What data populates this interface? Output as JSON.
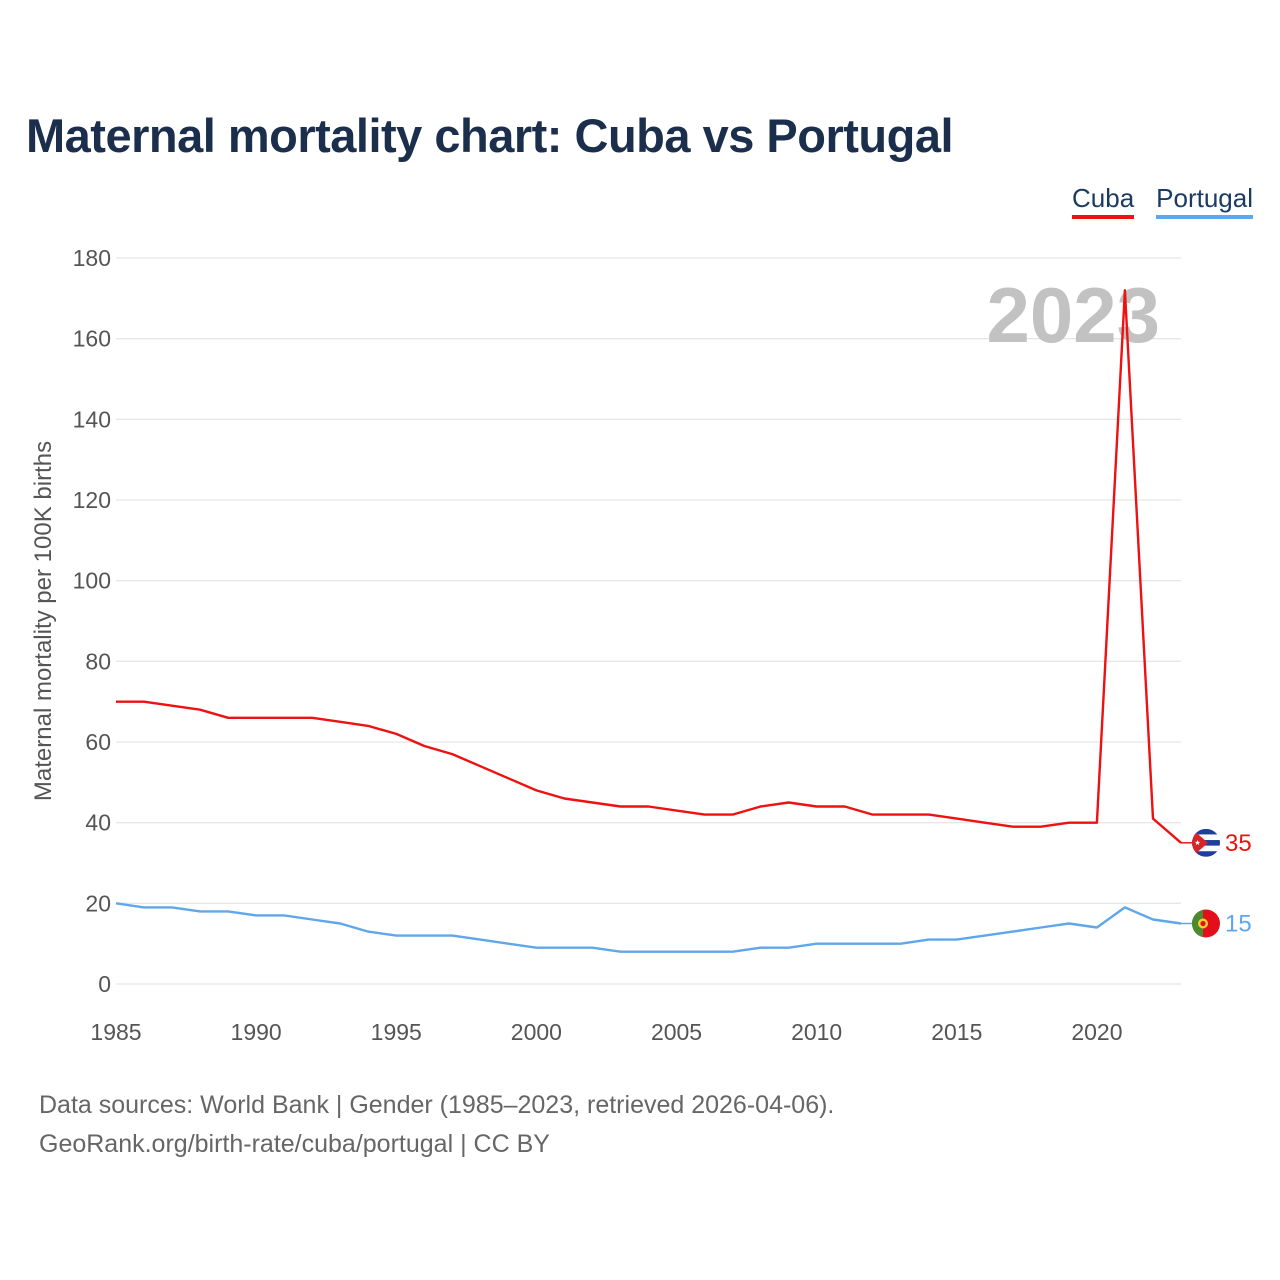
{
  "title": "Maternal mortality chart: Cuba vs Portugal",
  "legend": [
    {
      "label": "Cuba",
      "color": "#ee1111"
    },
    {
      "label": "Portugal",
      "color": "#5ea7ea"
    }
  ],
  "footer": {
    "line1": "Data sources: World Bank | Gender (1985–2023, retrieved 2026-04-06).",
    "line2": "GeoRank.org/birth-rate/cuba/portugal | CC BY"
  },
  "chart_data": {
    "type": "line",
    "title": "Maternal mortality chart: Cuba vs Portugal",
    "ylabel": "Maternal mortality per 100K births",
    "xlabel": "",
    "year_label": "2023",
    "xlim": [
      1985,
      2023
    ],
    "ylim": [
      0,
      180
    ],
    "x_ticks": [
      1985,
      1990,
      1995,
      2000,
      2005,
      2010,
      2015,
      2020
    ],
    "y_ticks": [
      0,
      20,
      40,
      60,
      80,
      100,
      120,
      140,
      160,
      180
    ],
    "grid": true,
    "legend_position": "top-right",
    "x": [
      1985,
      1986,
      1987,
      1988,
      1989,
      1990,
      1991,
      1992,
      1993,
      1994,
      1995,
      1996,
      1997,
      1998,
      1999,
      2000,
      2001,
      2002,
      2003,
      2004,
      2005,
      2006,
      2007,
      2008,
      2009,
      2010,
      2011,
      2012,
      2013,
      2014,
      2015,
      2016,
      2017,
      2018,
      2019,
      2020,
      2021,
      2022,
      2023
    ],
    "series": [
      {
        "name": "Cuba",
        "color": "#ee1111",
        "end_label": "35",
        "values": [
          70,
          70,
          69,
          68,
          66,
          66,
          66,
          66,
          65,
          64,
          62,
          59,
          57,
          54,
          51,
          48,
          46,
          45,
          44,
          44,
          43,
          42,
          42,
          44,
          45,
          44,
          44,
          42,
          42,
          42,
          41,
          40,
          39,
          39,
          40,
          40,
          172,
          41,
          35
        ]
      },
      {
        "name": "Portugal",
        "color": "#5ea7ea",
        "end_label": "15",
        "values": [
          20,
          19,
          19,
          18,
          18,
          17,
          17,
          16,
          15,
          13,
          12,
          12,
          12,
          11,
          10,
          9,
          9,
          9,
          8,
          8,
          8,
          8,
          8,
          9,
          9,
          10,
          10,
          10,
          10,
          11,
          11,
          12,
          13,
          14,
          15,
          14,
          19,
          16,
          15
        ]
      }
    ]
  }
}
